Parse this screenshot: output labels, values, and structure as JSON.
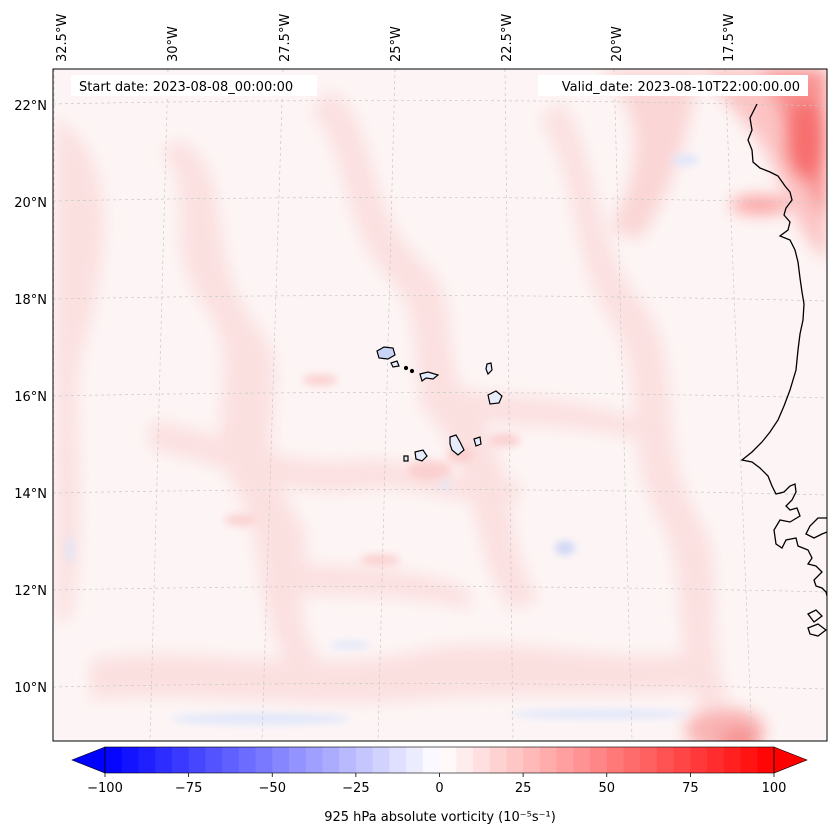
{
  "header": {
    "start_date": "Start date: 2023-08-08_00:00:00",
    "valid_date": "Valid_date: 2023-08-10T22:00:00.00"
  },
  "axes": {
    "lon_labels": [
      "32.5°W",
      "30°W",
      "27.5°W",
      "25°W",
      "22.5°W",
      "20°W",
      "17.5°W"
    ],
    "lat_labels": [
      "22°N",
      "20°N",
      "18°N",
      "16°N",
      "14°N",
      "12°N",
      "10°N"
    ]
  },
  "colorbar": {
    "label": "925 hPa absolute vorticity (10⁻⁵s⁻¹)",
    "min": -100,
    "max": 100,
    "ticks": [
      "−100",
      "−75",
      "−50",
      "−25",
      "0",
      "25",
      "50",
      "75",
      "100"
    ],
    "colors": {
      "negative": "#0000ff",
      "zero": "#ffffff",
      "positive": "#ff0000"
    }
  },
  "map": {
    "background": "#fdf4f4",
    "coastline_color": "#000000",
    "gridline_color": "#c8c8c8"
  }
}
